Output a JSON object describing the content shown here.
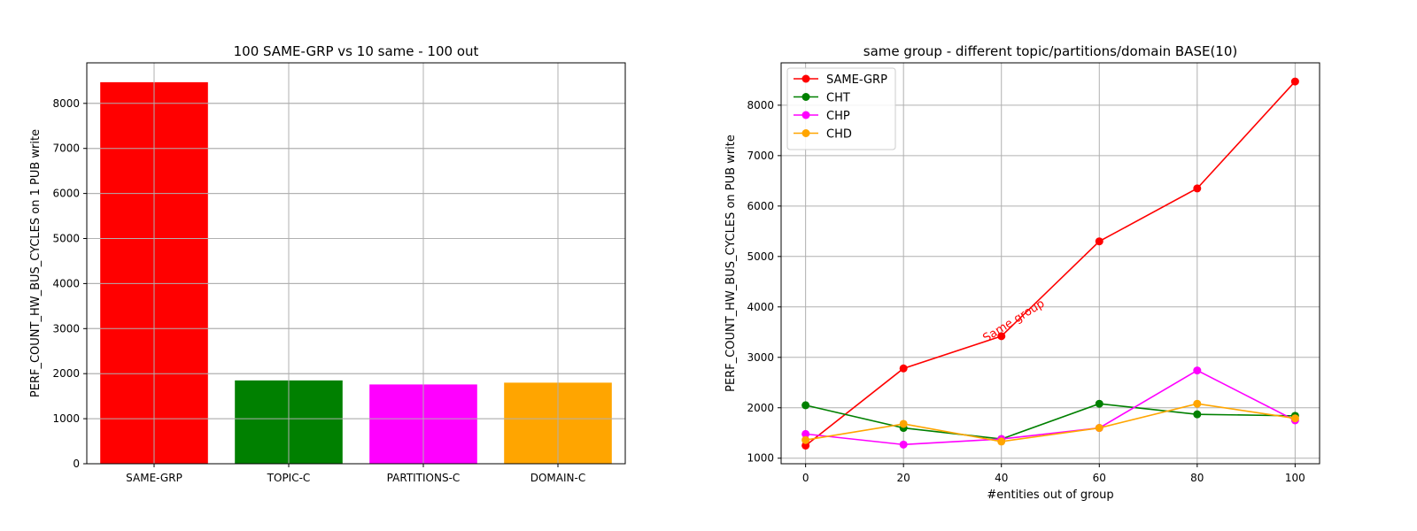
{
  "chart_data": [
    {
      "type": "bar",
      "title": "100 SAME-GRP vs 10 same - 100 out",
      "xlabel": "",
      "ylabel": "PERF_COUNT_HW_BUS_CYCLES on 1 PUB write",
      "categories": [
        "SAME-GRP",
        "TOPIC-C",
        "PARTITIONS-C",
        "DOMAIN-C"
      ],
      "values": [
        8470,
        1850,
        1760,
        1800
      ],
      "colors": [
        "#ff0000",
        "#008000",
        "#ff00ff",
        "#ffa500"
      ],
      "ylim": [
        0,
        8900
      ],
      "yticks": [
        0,
        1000,
        2000,
        3000,
        4000,
        5000,
        6000,
        7000,
        8000
      ],
      "grid": true
    },
    {
      "type": "line",
      "title": "same group - different topic/partitions/domain BASE(10)",
      "xlabel": "#entities out of group",
      "ylabel": "PERF_COUNT_HW_BUS_CYCLES on PUB write",
      "x": [
        0,
        20,
        40,
        60,
        80,
        100
      ],
      "xlim": [
        -5,
        105
      ],
      "ylim": [
        890,
        8840
      ],
      "xticks": [
        0,
        20,
        40,
        60,
        80,
        100
      ],
      "yticks": [
        1000,
        2000,
        3000,
        4000,
        5000,
        6000,
        7000,
        8000
      ],
      "grid": true,
      "legend": "top-left",
      "series": [
        {
          "name": "SAME-GRP",
          "color": "#ff0000",
          "values": [
            1250,
            2780,
            3420,
            5300,
            6350,
            8470
          ]
        },
        {
          "name": "CHT",
          "color": "#008000",
          "values": [
            2050,
            1600,
            1380,
            2080,
            1870,
            1840
          ]
        },
        {
          "name": "CHP",
          "color": "#ff00ff",
          "values": [
            1480,
            1270,
            1380,
            1600,
            2740,
            1750
          ]
        },
        {
          "name": "CHD",
          "color": "#ffa500",
          "values": [
            1360,
            1680,
            1330,
            1600,
            2080,
            1790
          ]
        }
      ],
      "annotations": [
        {
          "text": "Same group",
          "x": 40,
          "y": 3420,
          "color": "#ff0000",
          "rotation": -32
        }
      ]
    }
  ]
}
